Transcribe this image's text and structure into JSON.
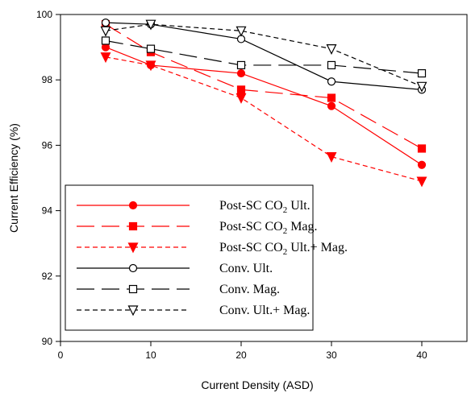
{
  "chart_data": {
    "type": "line",
    "title": "",
    "xlabel": "Current Density (ASD)",
    "ylabel": "Current Efficiency (%)",
    "xlim": [
      0,
      45
    ],
    "ylim": [
      90,
      100
    ],
    "xticks": [
      0,
      10,
      20,
      30,
      40
    ],
    "yticks": [
      90,
      92,
      94,
      96,
      98,
      100
    ],
    "grid": false,
    "legend_position": "bottom-left",
    "x": [
      5,
      10,
      20,
      30,
      40
    ],
    "series": [
      {
        "name": "Post-SC CO2 Ult.",
        "label_parts": [
          "Post-SC CO",
          "2",
          " Ult."
        ],
        "values": [
          99.0,
          98.45,
          98.2,
          97.2,
          95.4
        ],
        "color": "#ff0000",
        "dash": "solid",
        "marker": "circle",
        "filled": true
      },
      {
        "name": "Post-SC CO2 Mag.",
        "label_parts": [
          "Post-SC CO",
          "2",
          " Mag."
        ],
        "values": [
          99.7,
          98.85,
          97.7,
          97.45,
          95.9
        ],
        "color": "#ff0000",
        "dash": "long",
        "marker": "square",
        "filled": true
      },
      {
        "name": "Post-SC CO2 Ult.+ Mag.",
        "label_parts": [
          "Post-SC CO",
          "2",
          " Ult.+ Mag."
        ],
        "values": [
          98.7,
          98.45,
          97.45,
          95.65,
          94.9
        ],
        "color": "#ff0000",
        "dash": "short",
        "marker": "triangle-down",
        "filled": true
      },
      {
        "name": "Conv. Ult.",
        "label_parts": [
          "Conv. Ult.",
          "",
          ""
        ],
        "values": [
          99.75,
          99.7,
          99.25,
          97.95,
          97.7
        ],
        "color": "#000000",
        "dash": "solid",
        "marker": "circle",
        "filled": false
      },
      {
        "name": "Conv. Mag.",
        "label_parts": [
          "Conv. Mag.",
          "",
          ""
        ],
        "values": [
          99.2,
          98.95,
          98.45,
          98.45,
          98.2
        ],
        "color": "#000000",
        "dash": "long",
        "marker": "square",
        "filled": false
      },
      {
        "name": "Conv. Ult.+ Mag.",
        "label_parts": [
          "Conv. Ult.+ Mag.",
          "",
          ""
        ],
        "values": [
          99.5,
          99.7,
          99.5,
          98.95,
          97.8
        ],
        "color": "#000000",
        "dash": "short",
        "marker": "triangle-down",
        "filled": false
      }
    ]
  }
}
